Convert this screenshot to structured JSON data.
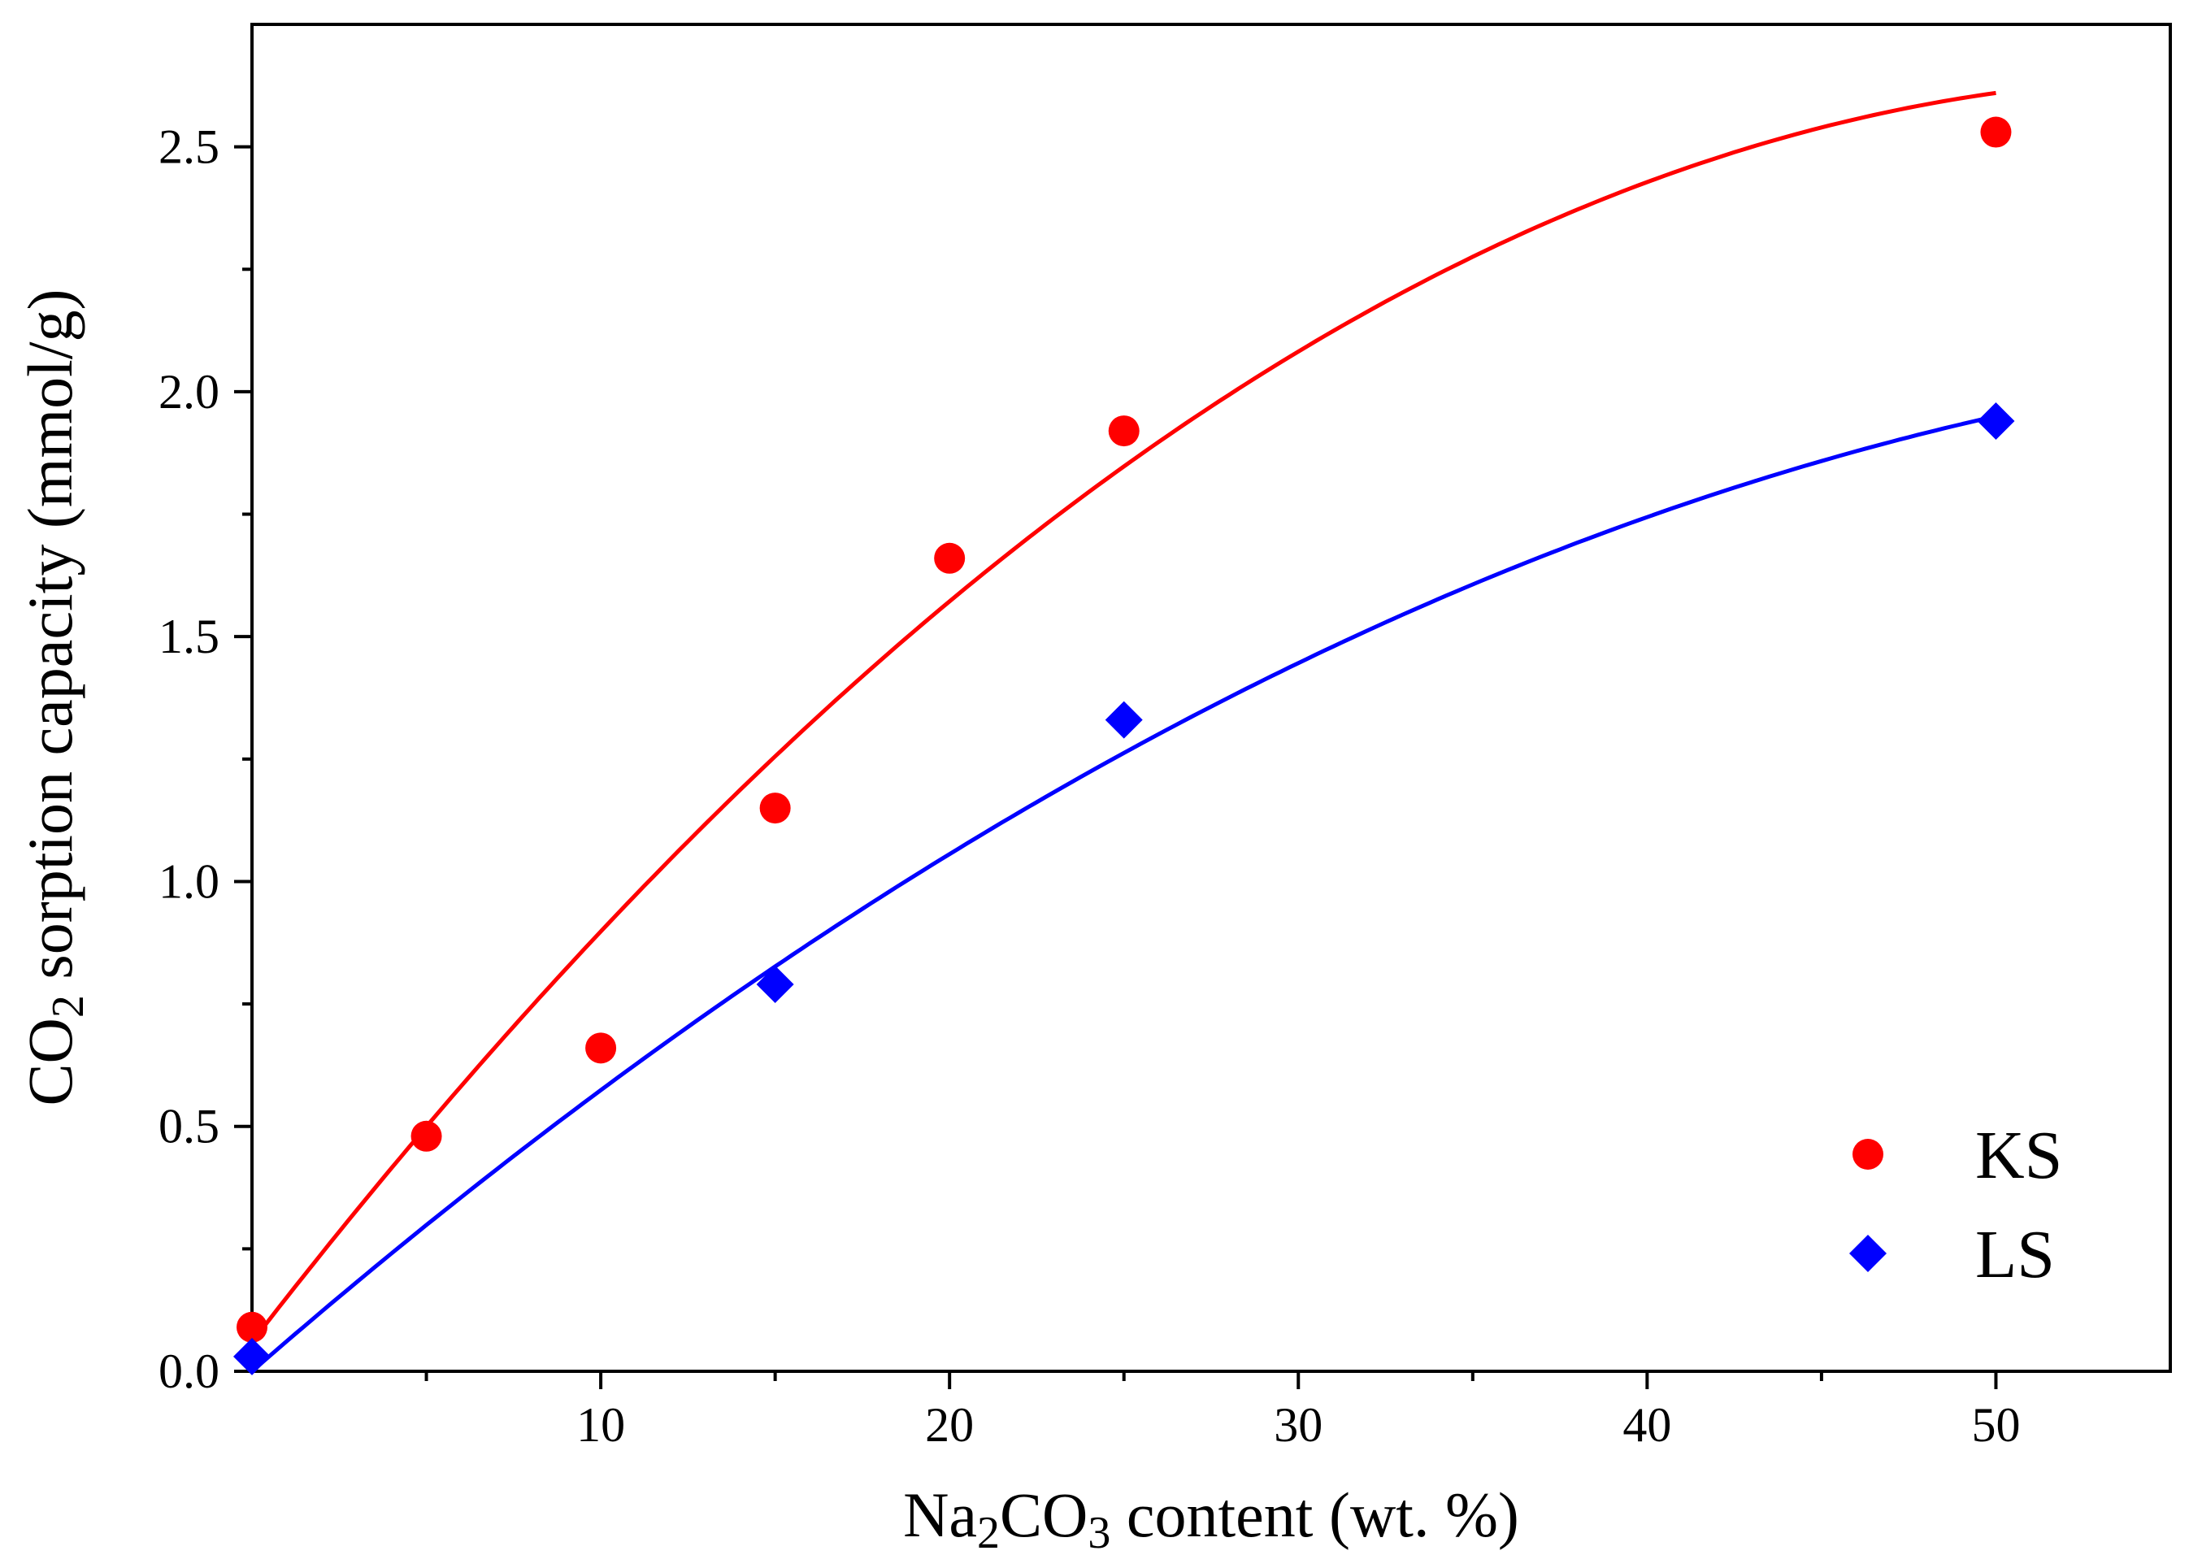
{
  "chart_data": {
    "type": "scatter",
    "title": "",
    "xlabel": {
      "pre": "Na",
      "sub1": "2",
      "mid": "CO",
      "sub2": "3",
      "post": " content (wt. %)"
    },
    "ylabel": {
      "pre": "CO",
      "sub": "2",
      "post": " sorption capacity (mmol/g)"
    },
    "xlim": [
      0,
      55
    ],
    "ylim": [
      0,
      2.75
    ],
    "x_ticks": [
      10,
      20,
      30,
      40,
      50
    ],
    "x_tick_labels": [
      "10",
      "20",
      "30",
      "40",
      "50"
    ],
    "x_minor_ticks": [
      5,
      15,
      25,
      35,
      45
    ],
    "y_ticks": [
      0.0,
      0.5,
      1.0,
      1.5,
      2.0,
      2.5
    ],
    "y_tick_labels": [
      "0.0",
      "0.5",
      "1.0",
      "1.5",
      "2.0",
      "2.5"
    ],
    "y_minor_ticks": [
      0.25,
      0.75,
      1.25,
      1.75,
      2.25
    ],
    "grid": false,
    "legend_position": "bottom-right",
    "series": [
      {
        "name": "KS",
        "marker": "circle",
        "color": "#ff0000",
        "x": [
          0,
          5,
          10,
          15,
          20,
          25,
          50
        ],
        "y": [
          0.09,
          0.48,
          0.66,
          1.15,
          1.66,
          1.92,
          2.53
        ],
        "fit": {
          "type": "quadratic",
          "coefficients": [
            0.06,
            0.092,
            -0.00082
          ]
        }
      },
      {
        "name": "LS",
        "marker": "diamond",
        "color": "#0000ff",
        "x": [
          0,
          15,
          25,
          50
        ],
        "y": [
          0.03,
          0.79,
          1.33,
          1.94
        ],
        "fit": {
          "type": "quadratic",
          "coefficients": [
            0.0,
            0.062,
            -0.00046
          ]
        }
      }
    ]
  }
}
